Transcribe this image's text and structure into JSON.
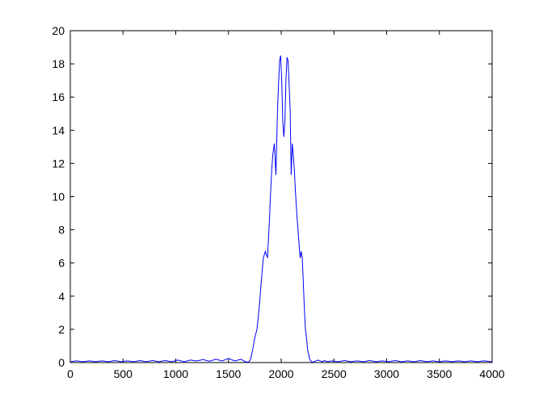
{
  "chart_data": {
    "type": "line",
    "title": "",
    "xlabel": "",
    "ylabel": "",
    "xlim": [
      0,
      4000
    ],
    "ylim": [
      0,
      20
    ],
    "xticks": [
      0,
      500,
      1000,
      1500,
      2000,
      2500,
      3000,
      3500,
      4000
    ],
    "yticks": [
      0,
      2,
      4,
      6,
      8,
      10,
      12,
      14,
      16,
      18,
      20
    ],
    "xtick_labels": [
      "0",
      "500",
      "1000",
      "1500",
      "2000",
      "2500",
      "3000",
      "3500",
      "4000"
    ],
    "ytick_labels": [
      "0",
      "2",
      "4",
      "6",
      "8",
      "10",
      "12",
      "14",
      "16",
      "18",
      "20"
    ],
    "grid": false,
    "legend": "none",
    "line_color": "#0000ff",
    "series": [
      {
        "x": [
          0,
          60,
          120,
          180,
          240,
          300,
          360,
          420,
          480,
          540,
          600,
          660,
          720,
          780,
          840,
          900,
          960,
          1020,
          1080,
          1140,
          1200,
          1260,
          1320,
          1380,
          1440,
          1500,
          1560,
          1620,
          1660,
          1690,
          1710,
          1730,
          1750,
          1770,
          1790,
          1810,
          1830,
          1850,
          1870,
          1880,
          1890,
          1900,
          1910,
          1920,
          1935,
          1950,
          1965,
          1975,
          1985,
          1995,
          2005,
          2015,
          2025,
          2035,
          2045,
          2055,
          2065,
          2075,
          2085,
          2095,
          2105,
          2115,
          2125,
          2135,
          2150,
          2165,
          2180,
          2190,
          2200,
          2210,
          2220,
          2230,
          2240,
          2250,
          2270,
          2290,
          2310,
          2330,
          2350,
          2370,
          2390,
          2410,
          2440,
          2480,
          2540,
          2600,
          2660,
          2720,
          2780,
          2840,
          2900,
          2960,
          3020,
          3080,
          3140,
          3200,
          3260,
          3320,
          3380,
          3440,
          3500,
          3560,
          3620,
          3680,
          3740,
          3800,
          3860,
          3920,
          4000
        ],
        "y": [
          0.05,
          0.1,
          0.05,
          0.1,
          0.05,
          0.1,
          0.05,
          0.12,
          0.05,
          0.1,
          0.05,
          0.12,
          0.05,
          0.12,
          0.05,
          0.12,
          0.05,
          0.15,
          0.05,
          0.15,
          0.1,
          0.18,
          0.08,
          0.2,
          0.1,
          0.25,
          0.1,
          0.2,
          0.05,
          0.02,
          0.2,
          0.8,
          1.5,
          2.0,
          3.2,
          4.8,
          6.3,
          6.7,
          6.3,
          7.5,
          8.8,
          10.3,
          11.6,
          12.5,
          13.2,
          11.3,
          15.2,
          16.8,
          18.2,
          18.5,
          17.0,
          14.5,
          13.6,
          14.5,
          17.0,
          18.4,
          18.2,
          16.8,
          15.2,
          11.3,
          13.2,
          12.5,
          11.6,
          10.3,
          8.8,
          7.5,
          6.3,
          6.7,
          6.3,
          4.8,
          3.2,
          2.0,
          1.5,
          0.8,
          0.2,
          0.02,
          0.05,
          0.1,
          0.15,
          0.1,
          0.05,
          0.12,
          0.05,
          0.1,
          0.05,
          0.12,
          0.05,
          0.1,
          0.05,
          0.12,
          0.05,
          0.1,
          0.05,
          0.12,
          0.05,
          0.1,
          0.05,
          0.12,
          0.05,
          0.1,
          0.05,
          0.1,
          0.05,
          0.1,
          0.05,
          0.1,
          0.05,
          0.1,
          0.05
        ]
      }
    ]
  }
}
